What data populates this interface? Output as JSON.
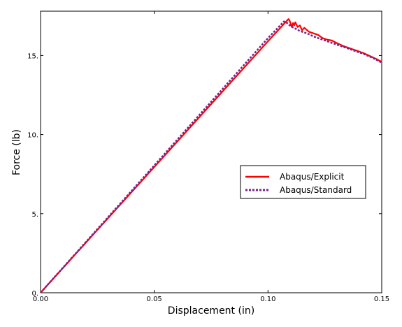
{
  "chart_data": {
    "type": "line",
    "xlabel": "Displacement (in)",
    "ylabel": "Force (lb)",
    "xlim": [
      0,
      0.15
    ],
    "ylim": [
      0,
      17.8
    ],
    "xticks": [
      {
        "value": 0.0,
        "label": "0.00"
      },
      {
        "value": 0.05,
        "label": "0.05"
      },
      {
        "value": 0.1,
        "label": "0.10"
      },
      {
        "value": 0.15,
        "label": "0.15"
      }
    ],
    "yticks": [
      {
        "value": 0,
        "label": "0."
      },
      {
        "value": 5,
        "label": "5."
      },
      {
        "value": 10,
        "label": "10."
      },
      {
        "value": 15,
        "label": "15."
      }
    ],
    "grid": false,
    "legend_position": "right",
    "series": [
      {
        "name": "Abaqus/Explicit",
        "color": "#ff0000",
        "style": "solid",
        "x": [
          0.0,
          0.02,
          0.04,
          0.06,
          0.08,
          0.1,
          0.108,
          0.109,
          0.1095,
          0.1105,
          0.111,
          0.1115,
          0.112,
          0.113,
          0.114,
          0.115,
          0.116,
          0.118,
          0.12,
          0.122,
          0.124,
          0.126,
          0.128,
          0.13,
          0.133,
          0.136,
          0.139,
          0.142,
          0.145,
          0.148,
          0.15
        ],
        "y": [
          0.0,
          3.18,
          6.36,
          9.54,
          12.72,
          15.9,
          17.15,
          17.3,
          17.2,
          16.8,
          17.05,
          16.9,
          17.1,
          16.8,
          16.9,
          16.6,
          16.75,
          16.5,
          16.4,
          16.3,
          16.1,
          16.0,
          15.95,
          15.8,
          15.6,
          15.45,
          15.3,
          15.15,
          14.95,
          14.75,
          14.6
        ]
      },
      {
        "name": "Abaqus/Standard",
        "color": "#7a1f8c",
        "style": "dashed",
        "x": [
          0.0,
          0.02,
          0.04,
          0.06,
          0.08,
          0.1,
          0.107,
          0.108,
          0.11,
          0.112,
          0.114,
          0.116,
          0.118,
          0.12,
          0.123,
          0.126,
          0.13,
          0.134,
          0.138,
          0.142,
          0.146,
          0.15
        ],
        "y": [
          0.0,
          3.22,
          6.44,
          9.66,
          12.88,
          16.1,
          17.15,
          17.1,
          16.85,
          16.7,
          16.55,
          16.45,
          16.35,
          16.2,
          16.05,
          15.9,
          15.7,
          15.5,
          15.3,
          15.1,
          14.85,
          14.55
        ]
      }
    ]
  }
}
